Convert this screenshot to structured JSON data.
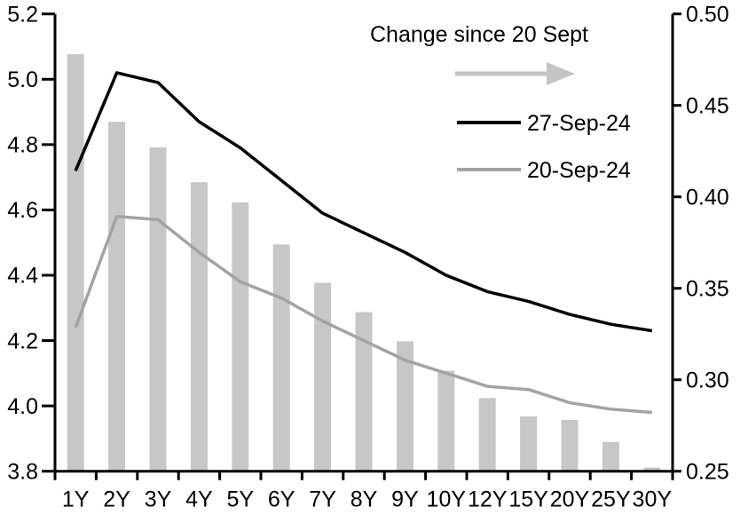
{
  "chart_data": {
    "type": "bar",
    "subtype": "combo-dual-axis",
    "title": "",
    "categories": [
      "1Y",
      "2Y",
      "3Y",
      "4Y",
      "5Y",
      "6Y",
      "7Y",
      "8Y",
      "9Y",
      "10Y",
      "12Y",
      "15Y",
      "20Y",
      "25Y",
      "30Y"
    ],
    "series": [
      {
        "name": "Change since 20 Sept",
        "render": "bar",
        "axis": "right",
        "color": "#c7c7c7",
        "values": [
          0.478,
          0.441,
          0.427,
          0.408,
          0.397,
          0.374,
          0.353,
          0.337,
          0.321,
          0.305,
          0.29,
          0.28,
          0.278,
          0.266,
          0.252
        ]
      },
      {
        "name": "27-Sep-24",
        "render": "line",
        "axis": "left",
        "color": "#000000",
        "values": [
          4.72,
          5.02,
          4.99,
          4.87,
          4.79,
          4.69,
          4.59,
          4.53,
          4.47,
          4.4,
          4.35,
          4.32,
          4.28,
          4.25,
          4.23
        ]
      },
      {
        "name": "20-Sep-24",
        "render": "line",
        "axis": "left",
        "color": "#a3a3a3",
        "values": [
          4.24,
          4.58,
          4.57,
          4.47,
          4.38,
          4.33,
          4.26,
          4.2,
          4.14,
          4.1,
          4.06,
          4.05,
          4.01,
          3.99,
          3.98
        ]
      }
    ],
    "left_axis": {
      "min": 3.8,
      "max": 5.2,
      "tick_values": [
        5.2,
        5.0,
        4.8,
        4.6,
        4.4,
        4.2,
        4.0,
        3.8
      ],
      "tick_labels": [
        "5.2",
        "5.0",
        "4.8",
        "4.6",
        "4.4",
        "4.2",
        "4.0",
        "3.8"
      ]
    },
    "right_axis": {
      "min": 0.25,
      "max": 0.5,
      "tick_values": [
        0.5,
        0.45,
        0.4,
        0.35,
        0.3,
        0.25
      ],
      "tick_labels": [
        "0.50",
        "0.45",
        "0.40",
        "0.35",
        "0.30",
        "0.25"
      ]
    },
    "grid": false,
    "legend_position": "top-center-inside"
  },
  "legend": {
    "title": "Change since 20 Sept",
    "arrow_icon": "right-arrow",
    "arrow_color": "#c4c4c4",
    "series": [
      {
        "label": "27-Sep-24",
        "color": "#000000"
      },
      {
        "label": "20-Sep-24",
        "color": "#a3a3a3"
      }
    ]
  },
  "colors": {
    "background": "#ffffff",
    "axis": "#000000",
    "bar": "#c7c7c7",
    "line_27sep": "#000000",
    "line_20sep": "#a3a3a3",
    "legend_arrow": "#c4c4c4",
    "text": "#000000"
  }
}
